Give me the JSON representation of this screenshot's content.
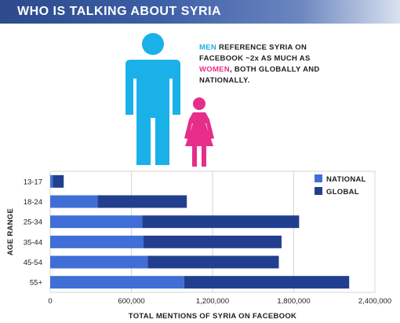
{
  "banner": {
    "title": "WHO IS TALKING ABOUT SYRIA"
  },
  "caption": {
    "men": "MEN",
    "part1": " REFERENCE SYRIA ON FACEBOOK ~2x AS MUCH AS ",
    "women": "WOMEN",
    "part2": ", BOTH GLOBALLY AND NATIONALLY."
  },
  "icons": {
    "male": "male-figure-icon",
    "female": "female-figure-icon",
    "male_color": "#1ab0e8",
    "female_color": "#e62d8a"
  },
  "chart_data": {
    "type": "bar",
    "orientation": "horizontal",
    "stacked": true,
    "categories": [
      "13-17",
      "18-24",
      "25-34",
      "35-44",
      "45-54",
      "55+"
    ],
    "series": [
      {
        "name": "NATIONAL",
        "color": "#3f6fd6",
        "values": [
          20000,
          350000,
          680000,
          690000,
          720000,
          990000
        ]
      },
      {
        "name": "GLOBAL",
        "color": "#223f8f",
        "values": [
          80000,
          660000,
          1160000,
          1020000,
          970000,
          1220000
        ]
      }
    ],
    "xlabel": "TOTAL MENTIONS OF SYRIA ON FACEBOOK",
    "ylabel": "AGE RANGE",
    "xlim": [
      0,
      2400000
    ],
    "xticks": [
      0,
      600000,
      1200000,
      1800000,
      2400000
    ],
    "xtick_labels": [
      "0",
      "600,000",
      "1,200,000",
      "1,800,000",
      "2,400,000"
    ],
    "grid": true,
    "legend_position": "top-right"
  }
}
